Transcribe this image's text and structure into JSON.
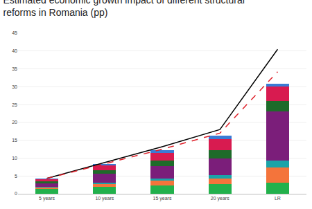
{
  "chart_data": {
    "type": "bar",
    "title": "Estimated economic growth impact of different structural reforms in Romania (pp)",
    "categories": [
      "5 years",
      "10 years",
      "15 years",
      "20 years",
      "LR"
    ],
    "stacked": true,
    "grid": true,
    "ylim": [
      0,
      45
    ],
    "yticks": [
      0,
      5,
      10,
      15,
      20,
      25,
      30,
      35,
      40,
      45
    ],
    "series": [
      {
        "color": "#22b14c",
        "values": [
          1.4,
          2.0,
          2.4,
          2.7,
          3.2
        ]
      },
      {
        "color": "#f4743b",
        "values": [
          0.4,
          0.7,
          1.2,
          1.5,
          4.1
        ]
      },
      {
        "color": "#1ba3a8",
        "values": [
          0.2,
          0.4,
          0.7,
          1.0,
          2.0
        ]
      },
      {
        "color": "#7b1e7a",
        "values": [
          1.0,
          2.5,
          3.5,
          4.6,
          13.7
        ]
      },
      {
        "color": "#1e6b2a",
        "values": [
          0.4,
          1.0,
          1.5,
          2.4,
          3.0
        ]
      },
      {
        "color": "#d81b50",
        "values": [
          0.7,
          1.4,
          2.2,
          3.2,
          4.0
        ]
      },
      {
        "color": "#3a7bd5",
        "values": [
          0.2,
          0.4,
          0.8,
          0.8,
          0.8
        ]
      },
      {
        "type": "line",
        "color": "#000000",
        "line_style": "solid",
        "values": [
          4.3,
          8.7,
          13.2,
          18.0,
          40.5
        ]
      },
      {
        "type": "line",
        "color": "#e0202a",
        "line_style": "dashed",
        "values": [
          4.3,
          8.4,
          12.5,
          17.0,
          34.2
        ]
      }
    ]
  }
}
